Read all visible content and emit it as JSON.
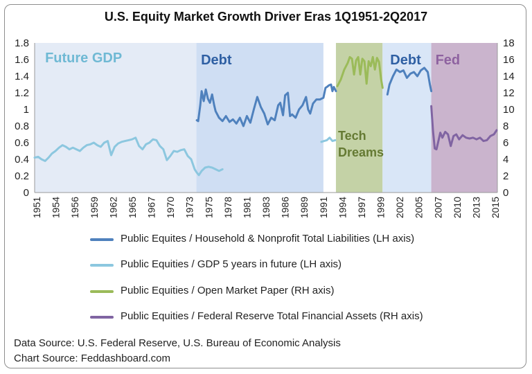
{
  "chart_data": {
    "type": "line",
    "title": "U.S. Equity Market Growth Driver Eras 1Q1951-2Q2017",
    "x_range": [
      1951,
      2017.5
    ],
    "x_ticks": [
      "1951",
      "1954",
      "1956",
      "1959",
      "1962",
      "1965",
      "1967",
      "1970",
      "1973",
      "1975",
      "1978",
      "1981",
      "1983",
      "1986",
      "1989",
      "1991",
      "1994",
      "1997",
      "1999",
      "2002",
      "2005",
      "2007",
      "2010",
      "2013",
      "2015"
    ],
    "y_left": {
      "min": 0,
      "max": 1.8,
      "ticks": [
        "0",
        "0.2",
        "0.4",
        "0.6",
        "0.8",
        "1",
        "1.2",
        "1.4",
        "1.6",
        "1.8"
      ]
    },
    "y_right": {
      "min": 0,
      "max": 18,
      "ticks": [
        "0",
        "2",
        "4",
        "6",
        "8",
        "10",
        "12",
        "14",
        "16",
        "18"
      ]
    },
    "eras": [
      {
        "label": "Future GDP",
        "start": 1951,
        "end": 1974.25,
        "color": "#e4ebf6",
        "label_color": "#6fb9d4"
      },
      {
        "label": "Debt",
        "start": 1974.25,
        "end": 1992.5,
        "color": "#cfdef3",
        "label_color": "#2e5fa3"
      },
      {
        "label": "Tech Dreams",
        "start": 1994.3,
        "end": 2001,
        "color": "#c4d2a6",
        "label_color": "#657a33"
      },
      {
        "label": "Debt",
        "start": 2001,
        "end": 2008,
        "color": "#d9e6f7",
        "label_color": "#2e5fa3"
      },
      {
        "label": "Fed",
        "start": 2008,
        "end": 2017.5,
        "color": "#cab4cd",
        "label_color": "#8e62a0"
      }
    ],
    "series": [
      {
        "name": "Public Equites / Household & Nonprofit Total Liabilities (LH axis)",
        "axis": "left",
        "color": "#4f81bd",
        "segments": [
          [
            [
              1974.3,
              0.87
            ],
            [
              1974.5,
              0.86
            ],
            [
              1974.8,
              1.05
            ],
            [
              1975,
              1.22
            ],
            [
              1975.3,
              1.1
            ],
            [
              1975.6,
              1.24
            ],
            [
              1975.9,
              1.13
            ],
            [
              1976.2,
              1.08
            ],
            [
              1976.5,
              1.18
            ],
            [
              1976.8,
              1.05
            ],
            [
              1977,
              0.98
            ],
            [
              1977.5,
              0.9
            ],
            [
              1978,
              0.86
            ],
            [
              1978.5,
              0.92
            ],
            [
              1979,
              0.85
            ],
            [
              1979.5,
              0.88
            ],
            [
              1980,
              0.83
            ],
            [
              1980.5,
              0.9
            ],
            [
              1981,
              0.8
            ],
            [
              1981.5,
              0.92
            ],
            [
              1982,
              0.84
            ],
            [
              1982.5,
              1.0
            ],
            [
              1983,
              1.15
            ],
            [
              1983.5,
              1.03
            ],
            [
              1984,
              0.95
            ],
            [
              1984.5,
              0.82
            ],
            [
              1985,
              0.9
            ],
            [
              1985.5,
              0.87
            ],
            [
              1986,
              1.05
            ],
            [
              1986.3,
              1.08
            ],
            [
              1986.7,
              0.93
            ],
            [
              1987,
              1.17
            ],
            [
              1987.4,
              1.2
            ],
            [
              1987.7,
              0.92
            ],
            [
              1988,
              0.94
            ],
            [
              1988.5,
              0.9
            ],
            [
              1989,
              1.0
            ],
            [
              1989.5,
              1.05
            ],
            [
              1990,
              1.15
            ],
            [
              1990.3,
              1.0
            ],
            [
              1990.6,
              0.95
            ],
            [
              1991,
              1.07
            ],
            [
              1991.5,
              1.12
            ],
            [
              1992,
              1.12
            ],
            [
              1992.5,
              1.14
            ],
            [
              1992.8,
              1.26
            ],
            [
              1993,
              1.27
            ],
            [
              1993.3,
              1.29
            ],
            [
              1993.6,
              1.3
            ],
            [
              1993.8,
              1.22
            ],
            [
              1994,
              1.27
            ],
            [
              1994.3,
              1.22
            ]
          ],
          [
            [
              2001.7,
              1.18
            ],
            [
              2002,
              1.3
            ],
            [
              2002.5,
              1.4
            ],
            [
              2003,
              1.48
            ],
            [
              2003.5,
              1.45
            ],
            [
              2004,
              1.47
            ],
            [
              2004.5,
              1.38
            ],
            [
              2005,
              1.43
            ],
            [
              2005.5,
              1.45
            ],
            [
              2006,
              1.4
            ],
            [
              2006.5,
              1.47
            ],
            [
              2007,
              1.5
            ],
            [
              2007.5,
              1.45
            ],
            [
              2007.8,
              1.3
            ],
            [
              2008,
              1.22
            ]
          ]
        ]
      },
      {
        "name": "Public Equities / GDP 5 years in future (LH axis)",
        "axis": "left",
        "color": "#8cc7df",
        "segments": [
          [
            [
              1951,
              0.42
            ],
            [
              1951.5,
              0.43
            ],
            [
              1952,
              0.4
            ],
            [
              1952.5,
              0.38
            ],
            [
              1953,
              0.42
            ],
            [
              1953.5,
              0.47
            ],
            [
              1954,
              0.5
            ],
            [
              1954.5,
              0.54
            ],
            [
              1955,
              0.57
            ],
            [
              1955.5,
              0.55
            ],
            [
              1956,
              0.52
            ],
            [
              1956.5,
              0.54
            ],
            [
              1957,
              0.52
            ],
            [
              1957.5,
              0.5
            ],
            [
              1958,
              0.54
            ],
            [
              1958.5,
              0.57
            ],
            [
              1959,
              0.58
            ],
            [
              1959.5,
              0.6
            ],
            [
              1960,
              0.57
            ],
            [
              1960.5,
              0.55
            ],
            [
              1961,
              0.6
            ],
            [
              1961.5,
              0.62
            ],
            [
              1962,
              0.45
            ],
            [
              1962.5,
              0.55
            ],
            [
              1963,
              0.59
            ],
            [
              1963.5,
              0.61
            ],
            [
              1964,
              0.62
            ],
            [
              1964.5,
              0.63
            ],
            [
              1965,
              0.64
            ],
            [
              1965.5,
              0.66
            ],
            [
              1966,
              0.56
            ],
            [
              1966.5,
              0.52
            ],
            [
              1967,
              0.58
            ],
            [
              1967.5,
              0.6
            ],
            [
              1968,
              0.64
            ],
            [
              1968.5,
              0.63
            ],
            [
              1969,
              0.56
            ],
            [
              1969.5,
              0.52
            ],
            [
              1970,
              0.39
            ],
            [
              1970.5,
              0.44
            ],
            [
              1971,
              0.5
            ],
            [
              1971.5,
              0.49
            ],
            [
              1972,
              0.51
            ],
            [
              1972.5,
              0.52
            ],
            [
              1973,
              0.44
            ],
            [
              1973.5,
              0.4
            ],
            [
              1974,
              0.28
            ],
            [
              1974.3,
              0.24
            ],
            [
              1974.6,
              0.21
            ],
            [
              1975,
              0.26
            ],
            [
              1975.5,
              0.3
            ],
            [
              1976,
              0.31
            ],
            [
              1976.5,
              0.3
            ],
            [
              1977,
              0.28
            ],
            [
              1977.5,
              0.26
            ],
            [
              1978,
              0.28
            ]
          ],
          [
            [
              1992.2,
              0.61
            ],
            [
              1992.6,
              0.62
            ],
            [
              1993,
              0.63
            ],
            [
              1993.4,
              0.66
            ],
            [
              1993.8,
              0.62
            ],
            [
              1994.2,
              0.63
            ]
          ]
        ]
      },
      {
        "name": "Public Equities / Open Market Paper (RH axis)",
        "axis": "right",
        "color": "#9bbb59",
        "segments": [
          [
            [
              1994.5,
              12.8
            ],
            [
              1995,
              13.6
            ],
            [
              1995.5,
              14.8
            ],
            [
              1996,
              15.6
            ],
            [
              1996.3,
              16.3
            ],
            [
              1996.6,
              16.1
            ],
            [
              1996.9,
              14.2
            ],
            [
              1997.2,
              15.9
            ],
            [
              1997.5,
              16.3
            ],
            [
              1997.8,
              14.2
            ],
            [
              1998.1,
              16.1
            ],
            [
              1998.4,
              15.8
            ],
            [
              1998.7,
              13.1
            ],
            [
              1999,
              15.8
            ],
            [
              1999.3,
              15.2
            ],
            [
              1999.6,
              16.3
            ],
            [
              1999.9,
              14.8
            ],
            [
              2000.2,
              16.2
            ],
            [
              2000.5,
              15.7
            ],
            [
              2000.8,
              13.6
            ],
            [
              2001,
              12.6
            ]
          ]
        ]
      },
      {
        "name": "Public Equities / Federal Reserve Total Financial Assets (RH axis)",
        "axis": "right",
        "color": "#8064a2",
        "segments": [
          [
            [
              2008,
              10.4
            ],
            [
              2008.25,
              7.4
            ],
            [
              2008.5,
              5.3
            ],
            [
              2008.75,
              5.2
            ],
            [
              2009,
              6.1
            ],
            [
              2009.3,
              7.2
            ],
            [
              2009.6,
              6.6
            ],
            [
              2010,
              7.3
            ],
            [
              2010.4,
              7.0
            ],
            [
              2010.8,
              5.6
            ],
            [
              2011.2,
              6.8
            ],
            [
              2011.6,
              7.0
            ],
            [
              2012,
              6.4
            ],
            [
              2012.5,
              6.9
            ],
            [
              2013,
              6.6
            ],
            [
              2013.5,
              6.5
            ],
            [
              2014,
              6.6
            ],
            [
              2014.5,
              6.4
            ],
            [
              2015,
              6.6
            ],
            [
              2015.5,
              6.2
            ],
            [
              2016,
              6.3
            ],
            [
              2016.5,
              6.8
            ],
            [
              2017,
              7.0
            ],
            [
              2017.4,
              7.5
            ]
          ]
        ]
      }
    ]
  },
  "sources": {
    "data": "Data Source: U.S. Federal Reserve, U.S. Bureau of Economic Analysis",
    "chart": "Chart Source: Feddashboard.com"
  }
}
